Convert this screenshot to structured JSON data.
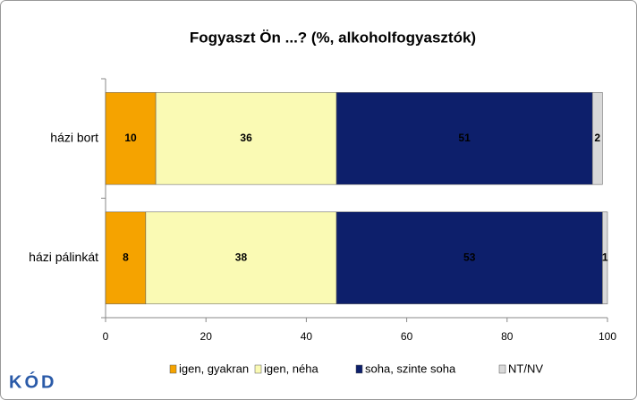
{
  "chart_data": {
    "type": "stacked_barh",
    "title": "Fogyaszt Ön ...? (%, alkoholfogyasztók)",
    "categories": [
      "házi bort",
      "házi pálinkát"
    ],
    "series": [
      {
        "name": "igen, gyakran",
        "color": "#f5a300",
        "label_color": "#000000",
        "values": [
          10,
          8
        ]
      },
      {
        "name": "igen, néha",
        "color": "#fafab4",
        "label_color": "#000000",
        "values": [
          36,
          38
        ]
      },
      {
        "name": "soha, szinte soha",
        "color": "#0d1f6b",
        "label_color": "#ffffff",
        "values": [
          51,
          53
        ]
      },
      {
        "name": "NT/NV",
        "color": "#d9d9d9",
        "label_color": "#000000",
        "values": [
          2,
          1
        ]
      }
    ],
    "xlim": [
      0,
      100
    ],
    "xticks": [
      0,
      20,
      40,
      60,
      80,
      100
    ],
    "legend": "bottom",
    "logo": "KÓD"
  }
}
